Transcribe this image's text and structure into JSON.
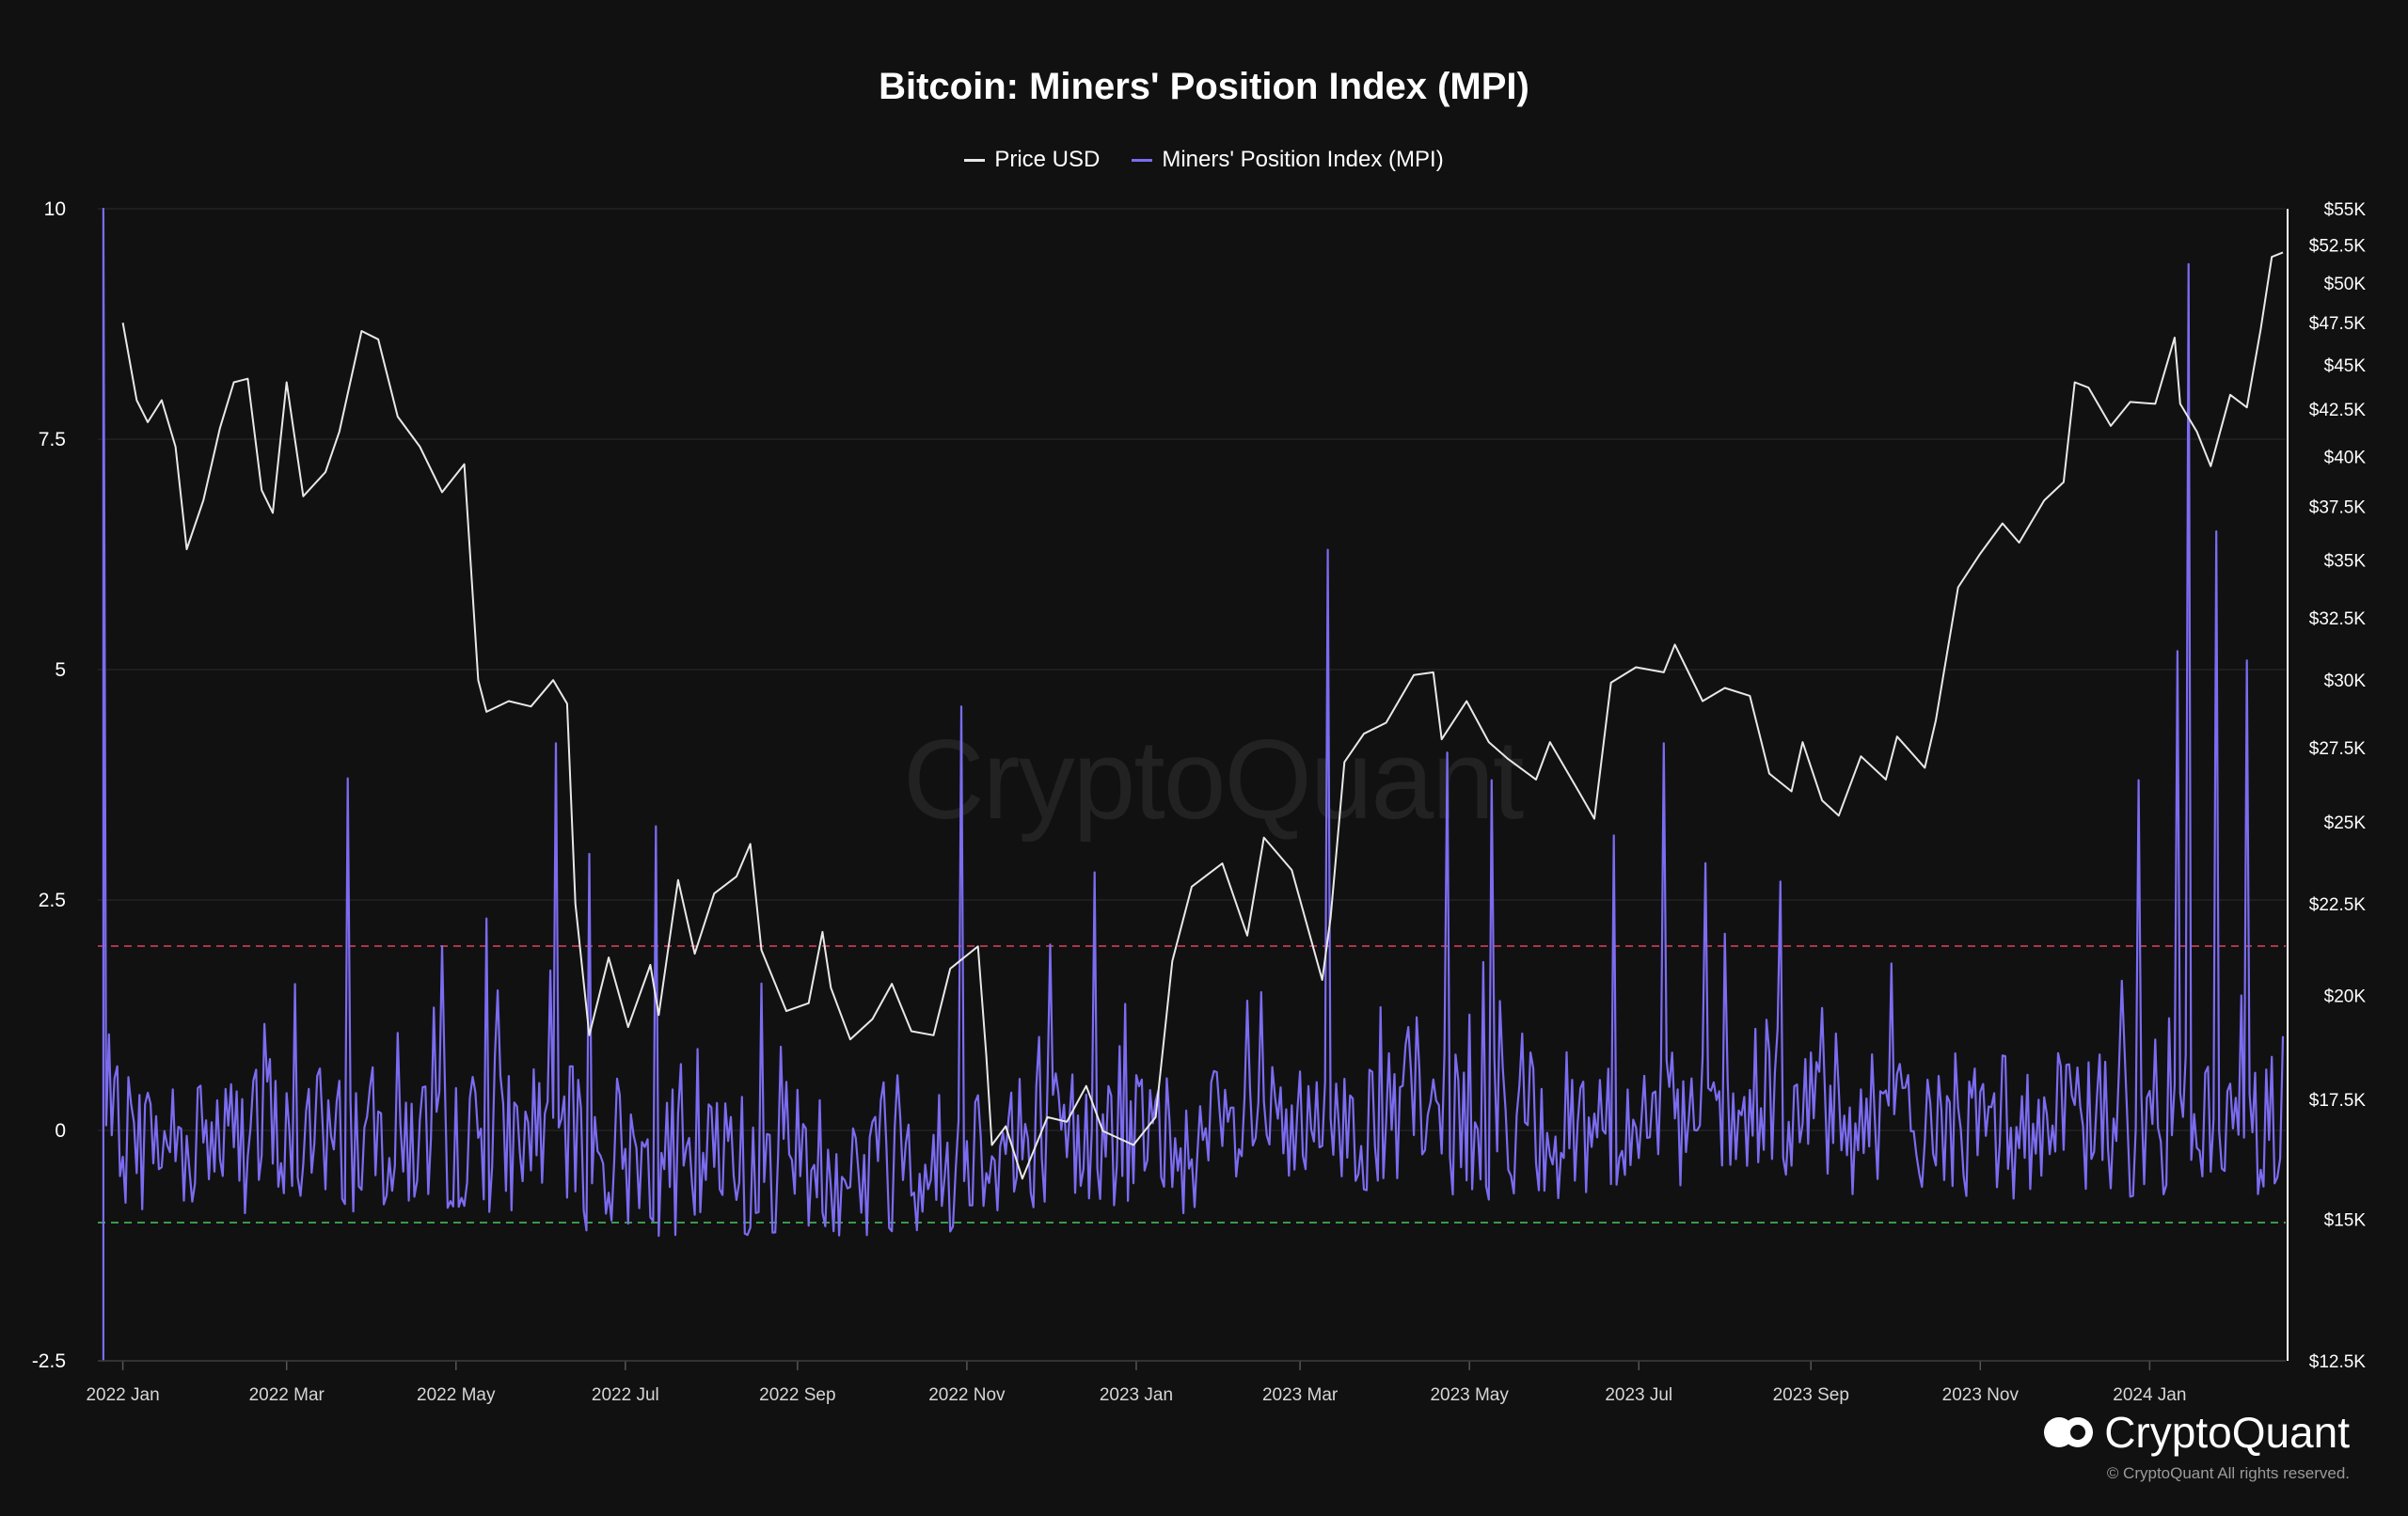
{
  "chart_data": {
    "type": "line",
    "title": "Bitcoin: Miners' Position Index (MPI)",
    "legend": {
      "placement": "top-center",
      "items": [
        {
          "label": "Price USD",
          "color": "#e8e8e8"
        },
        {
          "label": "Miners' Position Index (MPI)",
          "color": "#7b6cf0"
        }
      ]
    },
    "x_ticks": [
      "2022 Jan",
      "2022 Mar",
      "2022 May",
      "2022 Jul",
      "2022 Sep",
      "2022 Nov",
      "2023 Jan",
      "2023 Mar",
      "2023 May",
      "2023 Jul",
      "2023 Sep",
      "2023 Nov",
      "2024 Jan"
    ],
    "x_range": [
      "2021-12-23",
      "2024-02-19"
    ],
    "y_left": {
      "ticks": [
        "10",
        "7.5",
        "5",
        "2.5",
        "0",
        "-2.5"
      ],
      "range": [
        -2.5,
        10
      ]
    },
    "y_right": {
      "scale": "log",
      "ticks": [
        {
          "label": "$55K",
          "value": 55000
        },
        {
          "label": "$52.5K",
          "value": 52500
        },
        {
          "label": "$50K",
          "value": 50000
        },
        {
          "label": "$47.5K",
          "value": 47500
        },
        {
          "label": "$45K",
          "value": 45000
        },
        {
          "label": "$42.5K",
          "value": 42500
        },
        {
          "label": "$40K",
          "value": 40000
        },
        {
          "label": "$37.5K",
          "value": 37500
        },
        {
          "label": "$35K",
          "value": 35000
        },
        {
          "label": "$32.5K",
          "value": 32500
        },
        {
          "label": "$30K",
          "value": 30000
        },
        {
          "label": "$27.5K",
          "value": 27500
        },
        {
          "label": "$25K",
          "value": 25000
        },
        {
          "label": "$22.5K",
          "value": 22500
        },
        {
          "label": "$20K",
          "value": 20000
        },
        {
          "label": "$17.5K",
          "value": 17500
        },
        {
          "label": "$15K",
          "value": 15000
        },
        {
          "label": "$12.5K",
          "value": 12500
        }
      ],
      "range": [
        12500,
        55000
      ]
    },
    "threshold_lines": [
      {
        "value": 2.0,
        "axis": "left",
        "color": "#b0344a",
        "style": "dashed"
      },
      {
        "value": -1.0,
        "axis": "left",
        "color": "#3a9a4a",
        "style": "dashed"
      }
    ],
    "grid": true,
    "series": [
      {
        "name": "Price USD",
        "axis": "right",
        "color": "#e8e8e8",
        "points": [
          [
            "2022-01-01",
            47500
          ],
          [
            "2022-01-06",
            43000
          ],
          [
            "2022-01-10",
            41800
          ],
          [
            "2022-01-15",
            43000
          ],
          [
            "2022-01-20",
            40500
          ],
          [
            "2022-01-24",
            35500
          ],
          [
            "2022-01-30",
            37800
          ],
          [
            "2022-02-05",
            41500
          ],
          [
            "2022-02-10",
            44000
          ],
          [
            "2022-02-15",
            44200
          ],
          [
            "2022-02-20",
            38300
          ],
          [
            "2022-02-24",
            37200
          ],
          [
            "2022-03-01",
            44000
          ],
          [
            "2022-03-07",
            38000
          ],
          [
            "2022-03-15",
            39200
          ],
          [
            "2022-03-20",
            41300
          ],
          [
            "2022-03-28",
            47000
          ],
          [
            "2022-04-03",
            46500
          ],
          [
            "2022-04-10",
            42100
          ],
          [
            "2022-04-18",
            40500
          ],
          [
            "2022-04-26",
            38200
          ],
          [
            "2022-05-04",
            39600
          ],
          [
            "2022-05-09",
            30000
          ],
          [
            "2022-05-12",
            28800
          ],
          [
            "2022-05-20",
            29200
          ],
          [
            "2022-05-28",
            29000
          ],
          [
            "2022-06-05",
            30000
          ],
          [
            "2022-06-10",
            29100
          ],
          [
            "2022-06-13",
            22500
          ],
          [
            "2022-06-18",
            19000
          ],
          [
            "2022-06-25",
            21000
          ],
          [
            "2022-07-02",
            19200
          ],
          [
            "2022-07-10",
            20800
          ],
          [
            "2022-07-13",
            19500
          ],
          [
            "2022-07-20",
            23200
          ],
          [
            "2022-07-26",
            21100
          ],
          [
            "2022-08-02",
            22800
          ],
          [
            "2022-08-10",
            23300
          ],
          [
            "2022-08-15",
            24300
          ],
          [
            "2022-08-19",
            21200
          ],
          [
            "2022-08-28",
            19600
          ],
          [
            "2022-09-05",
            19800
          ],
          [
            "2022-09-10",
            21700
          ],
          [
            "2022-09-13",
            20200
          ],
          [
            "2022-09-20",
            18900
          ],
          [
            "2022-09-28",
            19400
          ],
          [
            "2022-10-05",
            20300
          ],
          [
            "2022-10-12",
            19100
          ],
          [
            "2022-10-20",
            19000
          ],
          [
            "2022-10-26",
            20700
          ],
          [
            "2022-11-05",
            21300
          ],
          [
            "2022-11-08",
            18500
          ],
          [
            "2022-11-10",
            16500
          ],
          [
            "2022-11-15",
            16900
          ],
          [
            "2022-11-21",
            15800
          ],
          [
            "2022-11-30",
            17100
          ],
          [
            "2022-12-07",
            17000
          ],
          [
            "2022-12-14",
            17800
          ],
          [
            "2022-12-20",
            16800
          ],
          [
            "2022-12-31",
            16500
          ],
          [
            "2023-01-08",
            17100
          ],
          [
            "2023-01-14",
            20900
          ],
          [
            "2023-01-21",
            23000
          ],
          [
            "2023-02-01",
            23700
          ],
          [
            "2023-02-10",
            21600
          ],
          [
            "2023-02-16",
            24500
          ],
          [
            "2023-02-26",
            23500
          ],
          [
            "2023-03-09",
            20400
          ],
          [
            "2023-03-12",
            22100
          ],
          [
            "2023-03-17",
            27000
          ],
          [
            "2023-03-24",
            28000
          ],
          [
            "2023-04-01",
            28400
          ],
          [
            "2023-04-11",
            30200
          ],
          [
            "2023-04-18",
            30300
          ],
          [
            "2023-04-21",
            27800
          ],
          [
            "2023-04-30",
            29200
          ],
          [
            "2023-05-08",
            27700
          ],
          [
            "2023-05-15",
            27100
          ],
          [
            "2023-05-25",
            26400
          ],
          [
            "2023-05-30",
            27700
          ],
          [
            "2023-06-10",
            25900
          ],
          [
            "2023-06-15",
            25100
          ],
          [
            "2023-06-21",
            29900
          ],
          [
            "2023-06-30",
            30500
          ],
          [
            "2023-07-10",
            30300
          ],
          [
            "2023-07-14",
            31400
          ],
          [
            "2023-07-24",
            29200
          ],
          [
            "2023-08-01",
            29700
          ],
          [
            "2023-08-10",
            29400
          ],
          [
            "2023-08-17",
            26600
          ],
          [
            "2023-08-25",
            26000
          ],
          [
            "2023-08-29",
            27700
          ],
          [
            "2023-09-05",
            25700
          ],
          [
            "2023-09-11",
            25200
          ],
          [
            "2023-09-19",
            27200
          ],
          [
            "2023-09-28",
            26400
          ],
          [
            "2023-10-02",
            27900
          ],
          [
            "2023-10-12",
            26800
          ],
          [
            "2023-10-16",
            28500
          ],
          [
            "2023-10-24",
            33800
          ],
          [
            "2023-11-01",
            35300
          ],
          [
            "2023-11-09",
            36700
          ],
          [
            "2023-11-15",
            35800
          ],
          [
            "2023-11-24",
            37800
          ],
          [
            "2023-12-01",
            38700
          ],
          [
            "2023-12-05",
            44000
          ],
          [
            "2023-12-10",
            43700
          ],
          [
            "2023-12-18",
            41600
          ],
          [
            "2023-12-25",
            42900
          ],
          [
            "2024-01-03",
            42800
          ],
          [
            "2024-01-10",
            46600
          ],
          [
            "2024-01-12",
            42800
          ],
          [
            "2024-01-18",
            41300
          ],
          [
            "2024-01-23",
            39500
          ],
          [
            "2024-01-30",
            43300
          ],
          [
            "2024-02-05",
            42600
          ],
          [
            "2024-02-10",
            47100
          ],
          [
            "2024-02-14",
            51700
          ],
          [
            "2024-02-18",
            52000
          ]
        ]
      },
      {
        "name": "Miners' Position Index (MPI)",
        "axis": "left",
        "color": "#7b6cf0",
        "start_date": "2021-12-25",
        "step_days": 1,
        "spikes": [
          [
            "2021-12-25",
            10.0
          ],
          [
            "2022-03-23",
            3.82
          ],
          [
            "2022-05-12",
            2.3
          ],
          [
            "2022-06-06",
            4.2
          ],
          [
            "2022-06-18",
            3.0
          ],
          [
            "2022-07-12",
            3.3
          ],
          [
            "2022-10-30",
            4.6
          ],
          [
            "2022-12-17",
            2.8
          ],
          [
            "2023-02-15",
            1.5
          ],
          [
            "2023-03-11",
            6.3
          ],
          [
            "2023-04-23",
            4.1
          ],
          [
            "2023-05-09",
            3.8
          ],
          [
            "2023-06-22",
            3.2
          ],
          [
            "2023-07-10",
            4.2
          ],
          [
            "2023-07-25",
            2.9
          ],
          [
            "2023-08-21",
            2.7
          ],
          [
            "2023-12-28",
            3.8
          ],
          [
            "2024-01-11",
            5.2
          ],
          [
            "2024-01-15",
            9.4
          ],
          [
            "2024-01-25",
            6.5
          ],
          [
            "2024-02-05",
            5.1
          ]
        ]
      }
    ]
  },
  "watermark_text": "CryptoQuant",
  "brand": {
    "name": "CryptoQuant",
    "copyright": "© CryptoQuant All rights reserved."
  }
}
